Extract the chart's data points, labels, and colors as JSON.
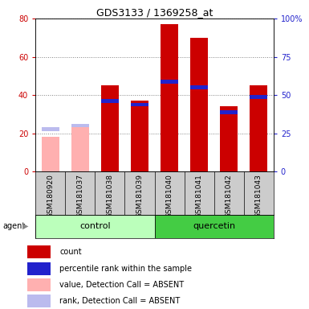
{
  "title": "GDS3133 / 1369258_at",
  "samples": [
    "GSM180920",
    "GSM181037",
    "GSM181038",
    "GSM181039",
    "GSM181040",
    "GSM181041",
    "GSM181042",
    "GSM181043"
  ],
  "groups": [
    "control",
    "control",
    "control",
    "control",
    "quercetin",
    "quercetin",
    "quercetin",
    "quercetin"
  ],
  "count_values": [
    0,
    0,
    45,
    37,
    77,
    70,
    34,
    45
  ],
  "rank_values": [
    0,
    0,
    37,
    35,
    47,
    44,
    31,
    39
  ],
  "absent_count": [
    18,
    23,
    0,
    0,
    0,
    0,
    0,
    0
  ],
  "absent_rank": [
    22,
    24,
    0,
    0,
    0,
    0,
    0,
    0
  ],
  "ylim": [
    0,
    80
  ],
  "y2lim": [
    0,
    100
  ],
  "yticks": [
    0,
    20,
    40,
    60,
    80
  ],
  "y2ticks": [
    0,
    25,
    50,
    75,
    100
  ],
  "y2ticklabels": [
    "0",
    "25",
    "50",
    "75",
    "100%"
  ],
  "color_red": "#cc0000",
  "color_blue": "#2222cc",
  "color_pink": "#ffb0b0",
  "color_lightblue": "#bbbbee",
  "color_control_bg": "#bbffbb",
  "color_quercetin_bg": "#44cc44",
  "color_sample_bg": "#cccccc",
  "bar_width": 0.6,
  "agent_label": "agent",
  "group_control": "control",
  "group_quercetin": "quercetin",
  "legend_items": [
    "count",
    "percentile rank within the sample",
    "value, Detection Call = ABSENT",
    "rank, Detection Call = ABSENT"
  ],
  "legend_colors": [
    "#cc0000",
    "#2222cc",
    "#ffb0b0",
    "#bbbbee"
  ]
}
